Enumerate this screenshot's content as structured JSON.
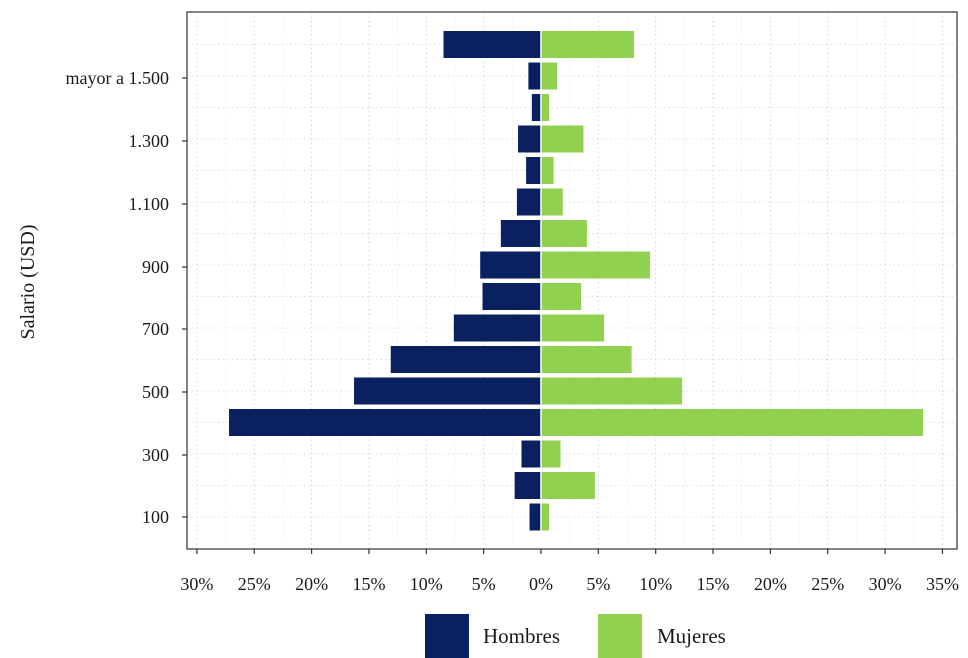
{
  "chart_data": {
    "type": "bar",
    "orientation": "horizontal-pyramid",
    "title": "",
    "xlabel": "",
    "ylabel": "Salario (USD)",
    "y_tick_labels": [
      "100",
      "300",
      "500",
      "700",
      "900",
      "1.100",
      "1.300",
      "mayor a 1.500"
    ],
    "x_tick_labels": [
      "30%",
      "25%",
      "20%",
      "15%",
      "10%",
      "5%",
      "0%",
      "5%",
      "10%",
      "15%",
      "20%",
      "25%",
      "30%",
      "35%"
    ],
    "xlim": [
      -30,
      35
    ],
    "grid": true,
    "legend_position": "bottom",
    "series": [
      {
        "name": "Hombres",
        "color": "#0a2060",
        "values": [
          1.0,
          2.3,
          1.7,
          27.2,
          16.3,
          13.1,
          7.6,
          5.1,
          5.3,
          3.5,
          2.1,
          1.3,
          2.0,
          0.8,
          1.1,
          8.5
        ]
      },
      {
        "name": "Mujeres",
        "color": "#92d050",
        "values": [
          0.7,
          4.7,
          1.7,
          33.3,
          12.3,
          7.9,
          5.5,
          3.5,
          9.5,
          4.0,
          1.9,
          1.1,
          3.7,
          0.7,
          1.4,
          8.1
        ]
      }
    ]
  }
}
